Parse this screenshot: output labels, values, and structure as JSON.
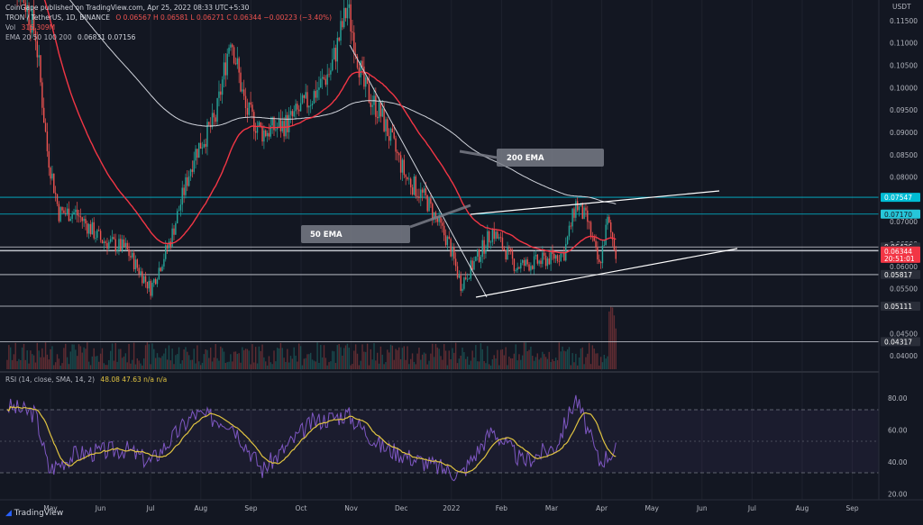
{
  "header": {
    "publisher": "CoinGape published on TradingView.com, Apr 25, 2022 08:33 UTC+5:30",
    "symbol": "TRON / TetherUS, 1D, BINANCE",
    "ohlc": "O 0.06567  H 0.06581  L 0.06271  C 0.06344  −0.00223 (−3.40%)",
    "vol_label": "Vol",
    "vol_value": "316.309M",
    "ema_label": "EMA 20 50 100 200",
    "ema_values": "0.06831  0.07156"
  },
  "price_axis": {
    "unit": "USDT",
    "ticks": [
      "0.11500",
      "0.11000",
      "0.10500",
      "0.10000",
      "0.09500",
      "0.09000",
      "0.08500",
      "0.08000",
      "0.07000",
      "0.06500",
      "0.06000",
      "0.05500",
      "0.04500",
      "0.04000"
    ],
    "tags": [
      {
        "label": "0.07547",
        "value": 0.07547,
        "color": "#00bcd4",
        "text": "light"
      },
      {
        "label": "0.07170",
        "value": 0.0717,
        "color": "#26c6da",
        "text": "dark"
      },
      {
        "label": "0.06436",
        "value": 0.06436,
        "color": "#131722",
        "text": "light"
      },
      {
        "label": "0.06360",
        "value": 0.0636,
        "color": "#131722",
        "text": "light"
      },
      {
        "label": "0.06344",
        "value": 0.06344,
        "color": "#f23645",
        "text": "light"
      },
      {
        "label": "20:51:01",
        "value": 0.0618,
        "color": "#f23645",
        "text": "light"
      },
      {
        "label": "0.05817",
        "value": 0.05817,
        "color": "#131722",
        "text": "light"
      },
      {
        "label": "0.05111",
        "value": 0.05111,
        "color": "#131722",
        "text": "light"
      },
      {
        "label": "0.04317",
        "value": 0.04317,
        "color": "#131722",
        "text": "light"
      }
    ]
  },
  "rsi": {
    "header": "RSI (14, close, SMA, 14, 2)",
    "values_text": "48.08  47.63  n/a  n/a",
    "ticks": [
      "80.00",
      "60.00",
      "40.00",
      "20.00"
    ]
  },
  "time_axis": {
    "ticks": [
      "May",
      "Jun",
      "Jul",
      "Aug",
      "Sep",
      "Oct",
      "Nov",
      "Dec",
      "2022",
      "Feb",
      "Mar",
      "Apr",
      "May",
      "Jun",
      "Jul",
      "Aug",
      "Sep"
    ]
  },
  "annotations": {
    "ema200_label": "200 EMA",
    "ema50_label": "50 EMA"
  },
  "footer": {
    "brand": "TradingView"
  },
  "colors": {
    "bg": "#131722",
    "up": "#26a69a",
    "down": "#ef5350",
    "ema50": "#f23645",
    "ema200": "#d1d4dc",
    "rsi": "#7e57c2",
    "rsi_ma": "#e0c341",
    "support": "#ffffff",
    "cyan_level": "#00bcd4"
  },
  "chart_data": [
    {
      "type": "line",
      "name": "TRX/USDT daily price",
      "x": [
        "2021-04-25",
        "2021-05-05",
        "2021-05-12",
        "2021-05-19",
        "2021-05-26",
        "2021-06-05",
        "2021-06-20",
        "2021-07-05",
        "2021-07-20",
        "2021-08-01",
        "2021-08-15",
        "2021-08-28",
        "2021-09-06",
        "2021-09-15",
        "2021-09-25",
        "2021-10-10",
        "2021-10-25",
        "2021-11-05",
        "2021-11-15",
        "2021-11-25",
        "2021-12-05",
        "2021-12-20",
        "2022-01-01",
        "2022-01-15",
        "2022-01-22",
        "2022-02-01",
        "2022-02-10",
        "2022-02-24",
        "2022-03-10",
        "2022-03-25",
        "2022-04-01",
        "2022-04-08",
        "2022-04-15",
        "2022-04-20",
        "2022-04-25"
      ],
      "close": [
        0.13,
        0.12,
        0.112,
        0.086,
        0.072,
        0.072,
        0.066,
        0.064,
        0.055,
        0.066,
        0.085,
        0.093,
        0.112,
        0.095,
        0.09,
        0.092,
        0.098,
        0.104,
        0.118,
        0.1,
        0.094,
        0.08,
        0.075,
        0.065,
        0.056,
        0.062,
        0.068,
        0.06,
        0.061,
        0.063,
        0.074,
        0.07,
        0.06,
        0.07,
        0.06344
      ],
      "ylim": [
        0.037,
        0.118
      ]
    },
    {
      "type": "line",
      "name": "RSI",
      "x": [
        "2021-04-25",
        "2021-05-12",
        "2021-05-20",
        "2021-06-05",
        "2021-07-05",
        "2021-07-20",
        "2021-08-15",
        "2021-09-06",
        "2021-09-25",
        "2021-10-25",
        "2021-11-15",
        "2021-12-05",
        "2021-12-25",
        "2022-01-22",
        "2022-02-10",
        "2022-02-28",
        "2022-03-20",
        "2022-04-01",
        "2022-04-15",
        "2022-04-25"
      ],
      "values": [
        75,
        70,
        35,
        45,
        48,
        40,
        70,
        65,
        35,
        65,
        70,
        50,
        42,
        32,
        60,
        40,
        50,
        80,
        40,
        48.08
      ],
      "ylim": [
        18,
        88
      ]
    }
  ]
}
